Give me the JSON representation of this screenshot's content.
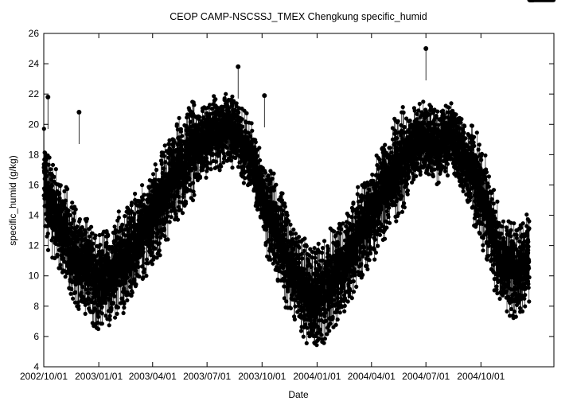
{
  "chart_data": {
    "type": "scatter",
    "title": "CEOP CAMP-NSCSSJ_TMEX Chengkung  specific_humid",
    "xlabel": "Date",
    "ylabel": "specific_humid (g/kg)",
    "xlim": [
      "2002-10-01",
      "2005-01-31"
    ],
    "ylim": [
      4,
      26
    ],
    "y_ticks": [
      4,
      6,
      8,
      10,
      12,
      14,
      16,
      18,
      20,
      22,
      24,
      26
    ],
    "x_ticks": [
      {
        "date": "2002-10-01",
        "label": "2002/10/01"
      },
      {
        "date": "2003-01-01",
        "label": "2003/01/01"
      },
      {
        "date": "2003-04-01",
        "label": "2003/04/01"
      },
      {
        "date": "2003-07-01",
        "label": "2003/07/01"
      },
      {
        "date": "2003-10-01",
        "label": "2003/10/01"
      },
      {
        "date": "2004-01-01",
        "label": "2004/01/01"
      },
      {
        "date": "2004-04-01",
        "label": "2004/04/01"
      },
      {
        "date": "2004-07-01",
        "label": "2004/07/01"
      },
      {
        "date": "2004-10-01",
        "label": "2004/10/01"
      }
    ],
    "grid": false,
    "marker": "filled-circle",
    "connected": true,
    "point_color": "#000000",
    "series": [
      {
        "x": [
          "2002-10-01",
          "2002-10-08",
          "2002-10-15",
          "2002-10-22",
          "2002-10-29",
          "2002-11-05",
          "2002-11-12",
          "2002-11-19",
          "2002-11-26",
          "2002-12-03",
          "2002-12-10",
          "2002-12-17",
          "2002-12-24",
          "2002-12-31",
          "2003-01-07",
          "2003-01-14",
          "2003-01-21",
          "2003-01-28",
          "2003-02-04",
          "2003-02-11",
          "2003-02-18",
          "2003-02-25",
          "2003-03-04",
          "2003-03-11",
          "2003-03-18",
          "2003-03-25",
          "2003-04-01",
          "2003-04-08",
          "2003-04-15",
          "2003-04-22",
          "2003-04-29",
          "2003-05-06",
          "2003-05-13",
          "2003-05-20",
          "2003-05-27",
          "2003-06-03",
          "2003-06-10",
          "2003-06-17",
          "2003-06-24",
          "2003-07-01",
          "2003-07-08",
          "2003-07-15",
          "2003-07-22",
          "2003-07-29",
          "2003-08-05",
          "2003-08-12",
          "2003-08-19",
          "2003-08-26",
          "2003-09-02",
          "2003-09-09",
          "2003-09-16",
          "2003-09-23",
          "2003-09-30",
          "2003-10-07",
          "2003-10-14",
          "2003-10-21",
          "2003-10-28",
          "2003-11-04",
          "2003-11-11",
          "2003-11-18",
          "2003-11-25",
          "2003-12-02",
          "2003-12-09",
          "2003-12-16",
          "2003-12-23",
          "2003-12-30",
          "2004-01-06",
          "2004-01-13",
          "2004-01-20",
          "2004-01-27",
          "2004-02-03",
          "2004-02-10",
          "2004-02-17",
          "2004-02-24",
          "2004-03-02",
          "2004-03-09",
          "2004-03-16",
          "2004-03-23",
          "2004-03-30",
          "2004-04-06",
          "2004-04-13",
          "2004-04-20",
          "2004-04-27",
          "2004-05-04",
          "2004-05-11",
          "2004-05-18",
          "2004-05-25",
          "2004-06-01",
          "2004-06-08",
          "2004-06-15",
          "2004-06-22",
          "2004-06-29",
          "2004-07-06",
          "2004-07-13",
          "2004-07-20",
          "2004-07-27",
          "2004-08-03",
          "2004-08-10",
          "2004-08-17",
          "2004-08-24",
          "2004-08-31",
          "2004-09-07",
          "2004-09-14",
          "2004-09-21",
          "2004-09-28",
          "2004-10-05",
          "2004-10-12",
          "2004-10-19",
          "2004-10-26",
          "2004-11-02",
          "2004-11-09",
          "2004-11-16",
          "2004-11-23",
          "2004-11-30",
          "2004-12-07",
          "2004-12-14",
          "2004-12-21",
          "2004-12-28"
        ],
        "y": [
          16.5,
          15.0,
          14.5,
          14.0,
          13.0,
          12.8,
          12.0,
          11.5,
          11.0,
          10.8,
          10.5,
          10.2,
          10.0,
          9.8,
          9.8,
          10.2,
          9.5,
          10.5,
          11.0,
          10.8,
          11.5,
          11.8,
          12.0,
          12.5,
          13.0,
          13.5,
          14.0,
          14.2,
          15.0,
          15.5,
          16.0,
          16.5,
          17.0,
          17.0,
          17.5,
          18.0,
          18.3,
          18.5,
          18.8,
          19.0,
          19.2,
          19.5,
          19.3,
          19.6,
          19.8,
          19.5,
          19.2,
          19.0,
          18.5,
          18.0,
          17.5,
          16.5,
          15.5,
          14.5,
          14.0,
          13.5,
          12.5,
          12.0,
          11.2,
          10.5,
          10.0,
          9.5,
          9.2,
          9.0,
          8.8,
          8.5,
          8.8,
          9.0,
          9.5,
          9.8,
          10.0,
          10.5,
          11.0,
          11.5,
          12.0,
          12.5,
          13.0,
          13.5,
          14.0,
          14.5,
          15.0,
          15.5,
          16.0,
          16.5,
          17.0,
          17.3,
          17.8,
          18.0,
          18.5,
          18.8,
          19.0,
          19.2,
          19.0,
          18.8,
          18.5,
          18.8,
          19.0,
          19.2,
          18.8,
          18.5,
          18.0,
          17.5,
          17.0,
          16.5,
          16.0,
          15.0,
          14.0,
          13.0,
          12.0,
          11.5,
          11.0,
          10.8,
          10.5,
          10.5,
          10.8,
          11.0,
          11.0,
          11.2
        ],
        "spread": [
          3.5,
          3.5,
          3.5,
          3.5,
          3.5,
          3.5,
          3.5,
          3.5,
          3.5,
          3.5,
          3.5,
          3.5,
          3.5,
          3.5,
          3.5,
          3.5,
          3.5,
          3.5,
          3.5,
          3.5,
          3.5,
          3.5,
          3.5,
          3.5,
          3.5,
          3.5,
          3.5,
          3.5,
          3.5,
          3.5,
          3.5,
          3.5,
          3.5,
          3.5,
          3.5,
          3.5,
          2.5,
          2.5,
          2.5,
          2.5,
          2.5,
          2.5,
          2.5,
          2.5,
          2.5,
          2.5,
          2.5,
          2.5,
          2.5,
          2.5,
          2.5,
          2.5,
          2.5,
          3.5,
          3.5,
          3.5,
          3.5,
          3.5,
          3.5,
          3.5,
          3.5,
          3.5,
          3.5,
          3.5,
          3.5,
          3.5,
          3.5,
          3.5,
          3.5,
          3.5,
          3.5,
          3.5,
          3.5,
          3.5,
          3.5,
          3.5,
          3.5,
          3.5,
          3.5,
          3.5,
          3.5,
          3.5,
          3.5,
          3.5,
          3.5,
          3.5,
          3.5,
          2.5,
          2.5,
          2.5,
          2.5,
          2.5,
          2.5,
          2.5,
          2.5,
          2.5,
          2.5,
          2.5,
          2.5,
          2.5,
          2.5,
          2.5,
          3.5,
          3.5,
          3.5,
          3.5,
          3.5,
          3.5,
          3.5,
          3.5,
          3.5,
          3.5,
          3.5,
          3.5,
          3.5,
          3.5
        ]
      }
    ],
    "peaks": [
      {
        "x": "2002-10-08",
        "y": 21.8
      },
      {
        "x": "2002-11-29",
        "y": 20.8
      },
      {
        "x": "2003-08-22",
        "y": 23.8
      },
      {
        "x": "2003-10-05",
        "y": 21.9
      },
      {
        "x": "2004-07-01",
        "y": 25.0
      }
    ]
  }
}
